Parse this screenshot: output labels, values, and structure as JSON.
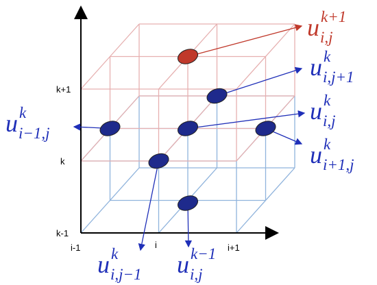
{
  "axes": {
    "z_labels": [
      "k+1",
      "k",
      "k-1"
    ],
    "x_labels": [
      "i-1",
      "i",
      "i+1"
    ]
  },
  "nodes": [
    {
      "base": "u",
      "sup": "k+1",
      "sub": "i,j"
    },
    {
      "base": "u",
      "sup": "k",
      "sub": "i,j+1"
    },
    {
      "base": "u",
      "sup": "k",
      "sub": "i−1,j"
    },
    {
      "base": "u",
      "sup": "k",
      "sub": "i,j"
    },
    {
      "base": "u",
      "sup": "k",
      "sub": "i+1,j"
    },
    {
      "base": "u",
      "sup": "k",
      "sub": "i,j−1"
    },
    {
      "base": "u",
      "sup": "k−1",
      "sub": "i,j"
    }
  ]
}
